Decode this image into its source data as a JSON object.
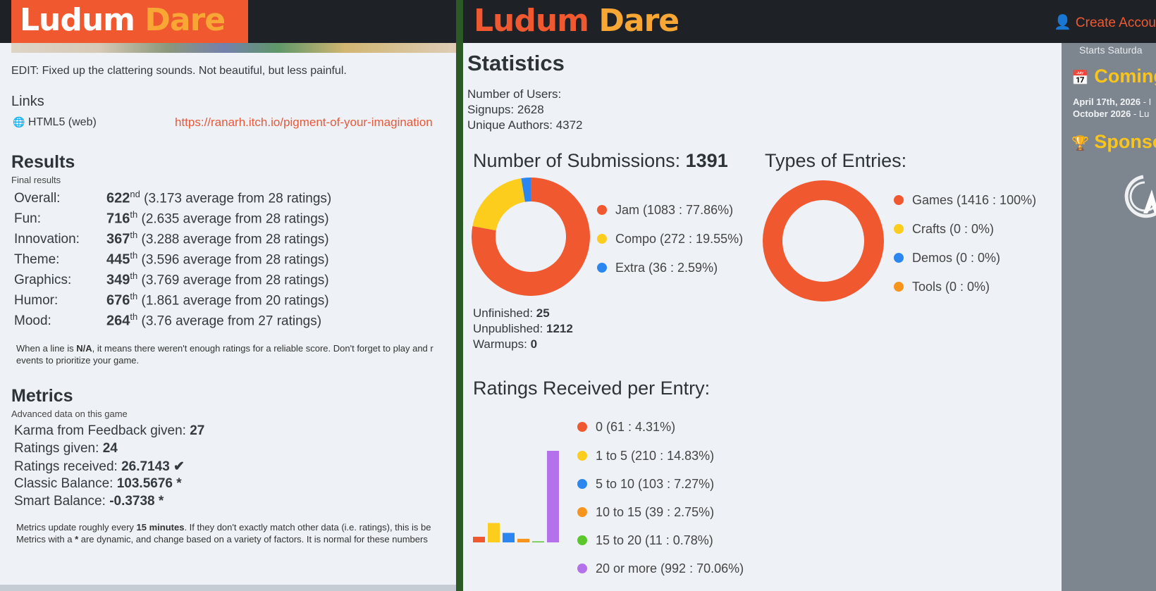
{
  "left": {
    "logo": {
      "word1": "Ludum",
      "word2": "Dare"
    },
    "edit_text": "EDIT: Fixed up the clattering sounds. Not beautiful, but less painful.",
    "links_title": "Links",
    "link": {
      "icon": "globe-icon",
      "label": "HTML5 (web)",
      "url": "https://ranarh.itch.io/pigment-of-your-imagination"
    },
    "results": {
      "title": "Results",
      "subtitle": "Final results",
      "rows": [
        {
          "label": "Overall:",
          "rank": "622",
          "suffix": "nd",
          "detail": "(3.173 average from 28 ratings)"
        },
        {
          "label": "Fun:",
          "rank": "716",
          "suffix": "th",
          "detail": "(2.635 average from 28 ratings)"
        },
        {
          "label": "Innovation:",
          "rank": "367",
          "suffix": "th",
          "detail": "(3.288 average from 28 ratings)"
        },
        {
          "label": "Theme:",
          "rank": "445",
          "suffix": "th",
          "detail": "(3.596 average from 28 ratings)"
        },
        {
          "label": "Graphics:",
          "rank": "349",
          "suffix": "th",
          "detail": "(3.769 average from 28 ratings)"
        },
        {
          "label": "Humor:",
          "rank": "676",
          "suffix": "th",
          "detail": "(1.861 average from 20 ratings)"
        },
        {
          "label": "Mood:",
          "rank": "264",
          "suffix": "th",
          "detail": "(3.76 average from 27 ratings)"
        }
      ],
      "note_pre": "When a line is ",
      "note_bold": "N/A",
      "note_post": ", it means there weren't enough ratings for a reliable score. Don't forget to play and r",
      "note_line2": "events to prioritize your game."
    },
    "metrics": {
      "title": "Metrics",
      "subtitle": "Advanced data on this game",
      "rows": [
        {
          "label": "Karma from Feedback given:",
          "value": "27",
          "extra": ""
        },
        {
          "label": "Ratings given:",
          "value": "24",
          "extra": ""
        },
        {
          "label": "Ratings received:",
          "value": "26.7143",
          "extra": "✔"
        },
        {
          "label": "Classic Balance:",
          "value": "103.5676",
          "extra": "*"
        },
        {
          "label": "Smart Balance:",
          "value": "-0.3738",
          "extra": "*"
        }
      ],
      "note1_pre": "Metrics update roughly every ",
      "note1_bold": "15 minutes",
      "note1_post": ". If they don't exactly match other data (i.e. ratings), this is be",
      "note2_pre": "Metrics with a ",
      "note2_bold": "*",
      "note2_post": " are dynamic, and change based on a variety of factors. It is normal for these numbers"
    }
  },
  "right": {
    "logo": {
      "word1": "Ludum",
      "word2": "Dare"
    },
    "create_account": "Create Accou",
    "stats": {
      "title": "Statistics",
      "users_label": "Number of Users:",
      "signups": "Signups: 2628",
      "authors": "Unique Authors: 4372"
    },
    "submissions": {
      "title": "Number of Submissions:",
      "total": "1391",
      "unfinished_label": "Unfinished:",
      "unfinished": "25",
      "unpublished_label": "Unpublished:",
      "unpublished": "1212",
      "warmups_label": "Warmups:",
      "warmups": "0"
    },
    "types_title": "Types of Entries:",
    "ratings_title": "Ratings Received per Entry:",
    "sidebar": {
      "starts": "Starts Saturda",
      "coming_title": "Coming",
      "event1_date": "April 17th, 2026",
      "event1_rest": " - I",
      "event2_date": "October 2026",
      "event2_rest": " - Lu",
      "sponsors_title": "Sponso"
    }
  },
  "chart_data": [
    {
      "type": "pie",
      "categories": [
        "Jam",
        "Compo",
        "Extra"
      ],
      "values": [
        1083,
        272,
        36
      ],
      "legend": [
        "Jam (1083 : 77.86%)",
        "Compo (272 : 19.55%)",
        "Extra (36 : 2.59%)"
      ],
      "colors": [
        "#f0582f",
        "#fccd1c",
        "#2b87ef"
      ],
      "legend_position": "right"
    },
    {
      "type": "pie",
      "categories": [
        "Games",
        "Crafts",
        "Demos",
        "Tools"
      ],
      "values": [
        1416,
        0,
        0,
        0
      ],
      "legend": [
        "Games (1416 : 100%)",
        "Crafts (0 : 0%)",
        "Demos (0 : 0%)",
        "Tools (0 : 0%)"
      ],
      "colors": [
        "#f0582f",
        "#fccd1c",
        "#2b87ef",
        "#f7941d"
      ],
      "legend_position": "right"
    },
    {
      "type": "bar",
      "categories": [
        "0",
        "1 to 5",
        "5 to 10",
        "10 to 15",
        "15 to 20",
        "20 or more"
      ],
      "values": [
        61,
        210,
        103,
        39,
        11,
        992
      ],
      "legend": [
        "0 (61 : 4.31%)",
        "1 to 5 (210 : 14.83%)",
        "5 to 10 (103 : 7.27%)",
        "10 to 15 (39 : 2.75%)",
        "15 to 20 (11 : 0.78%)",
        "20 or more (992 : 70.06%)"
      ],
      "colors": [
        "#f0582f",
        "#fccd1c",
        "#2b87ef",
        "#f7941d",
        "#5ac72a",
        "#b472ea"
      ],
      "legend_position": "right"
    }
  ]
}
